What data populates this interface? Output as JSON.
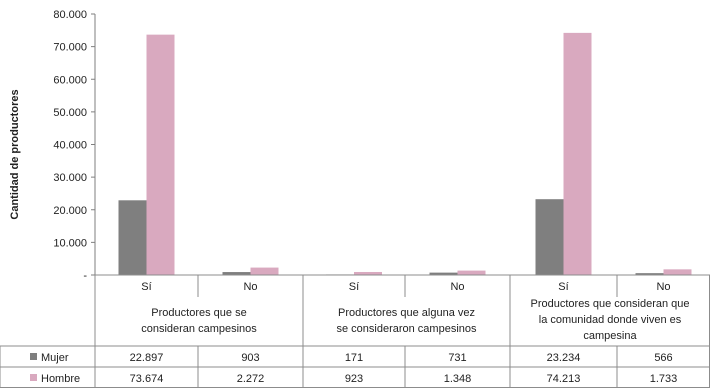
{
  "chart_data": {
    "type": "bar",
    "ylabel": "Cantidad de productores",
    "ylim": [
      0,
      80000
    ],
    "y_ticks": [
      "-",
      "10.000",
      "20.000",
      "30.000",
      "40.000",
      "50.000",
      "60.000",
      "70.000",
      "80.000"
    ],
    "groups": [
      {
        "label": [
          "Productores que se",
          "consideran campesinos"
        ]
      },
      {
        "label": [
          "Productores que alguna vez",
          "se consideraron campesinos"
        ]
      },
      {
        "label": [
          "Productores que consideran que",
          "la comunidad donde viven es",
          "campesina"
        ]
      }
    ],
    "categories": [
      "Sí",
      "No",
      "Sí",
      "No",
      "Sí",
      "No"
    ],
    "series": [
      {
        "name": "Mujer",
        "color": "#7f7f7f",
        "values": [
          22897,
          903,
          171,
          731,
          23234,
          566
        ],
        "labels": [
          "22.897",
          "903",
          "171",
          "731",
          "23.234",
          "566"
        ]
      },
      {
        "name": "Hombre",
        "color": "#d9a9bf",
        "values": [
          73674,
          2272,
          923,
          1348,
          74213,
          1733
        ],
        "labels": [
          "73.674",
          "2.272",
          "923",
          "1.348",
          "74.213",
          "1.733"
        ]
      }
    ],
    "legend": "table-left",
    "grid": false
  }
}
